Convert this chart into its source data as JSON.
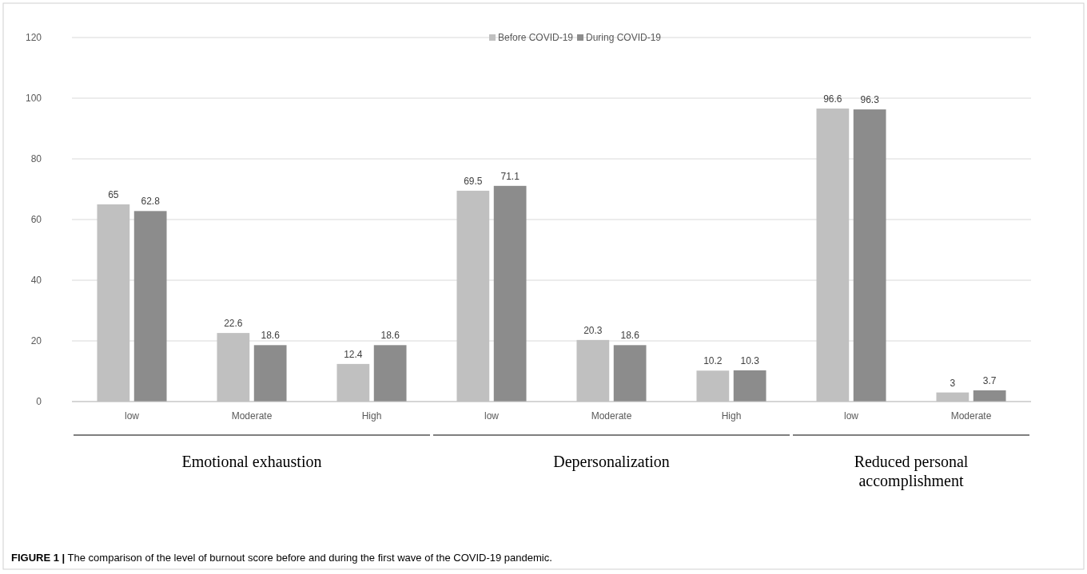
{
  "chart_data": {
    "type": "bar",
    "categories": [
      "low",
      "Moderate",
      "High",
      "low",
      "Moderate",
      "High",
      "low",
      "Moderate"
    ],
    "series": [
      {
        "name": "Before COVID-19",
        "color": "#c0c0c0",
        "values": [
          65,
          22.6,
          12.4,
          69.5,
          20.3,
          10.2,
          96.6,
          3
        ]
      },
      {
        "name": "During COVID-19",
        "color": "#8c8c8c",
        "values": [
          62.8,
          18.6,
          18.6,
          71.1,
          18.6,
          10.3,
          96.3,
          3.7
        ]
      }
    ],
    "ylim": [
      0,
      120
    ],
    "yticks": [
      0,
      20,
      40,
      60,
      80,
      100,
      120
    ],
    "grid": "y",
    "legend": "top",
    "data_labels": true,
    "annotations": [
      "Emotional exhaustion",
      "Depersonalization",
      "Reduced personal accomplishment",
      "FIGURE 1 | The comparison of the level of burnout score before and during the first wave of the COVID-19 pandemic."
    ]
  }
}
